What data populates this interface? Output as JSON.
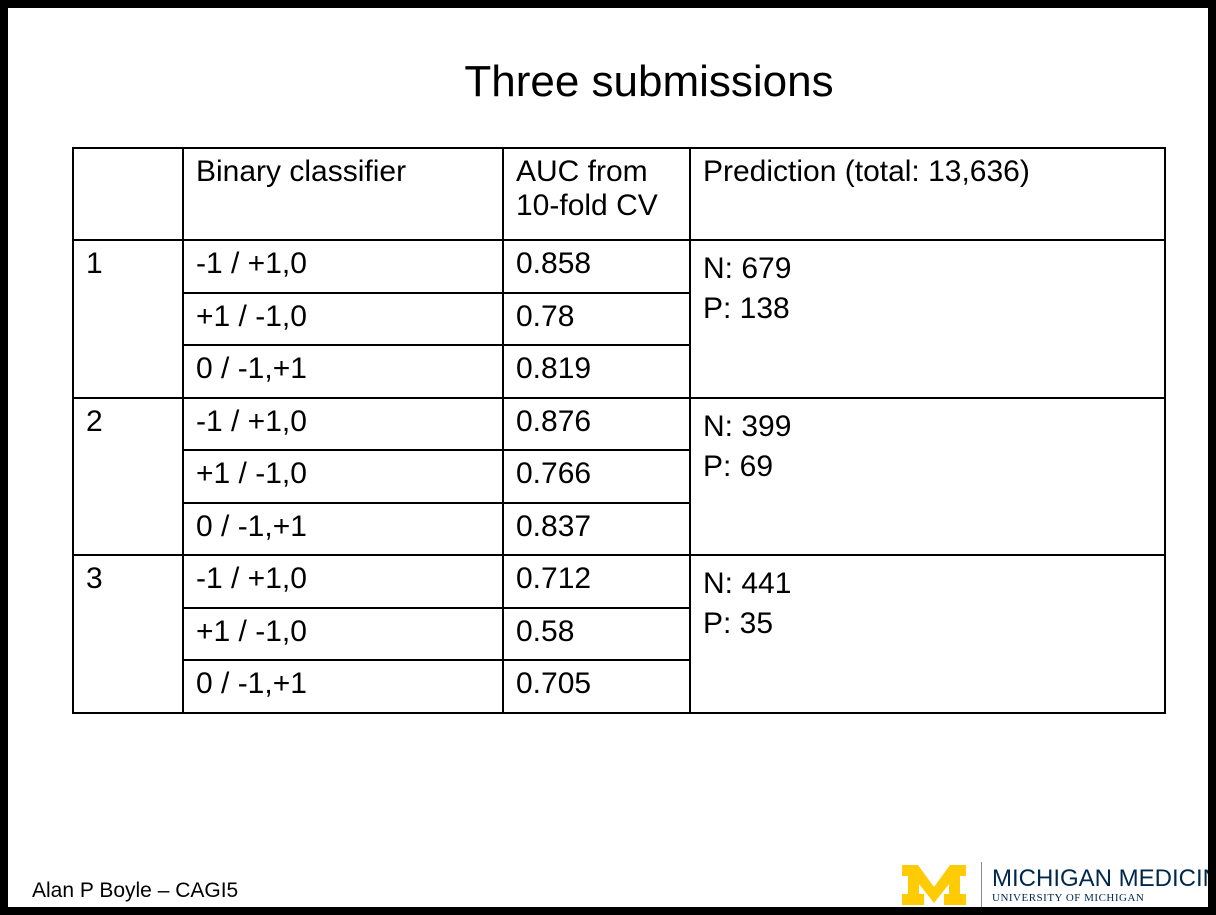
{
  "slide": {
    "title": "Three submissions"
  },
  "table": {
    "headers": [
      "",
      "Binary classifier",
      "AUC from 10-fold CV",
      "Prediction (total: 13,636)"
    ],
    "submissions": [
      {
        "id": "1",
        "rows": [
          {
            "classifier": "-1 / +1,0",
            "auc": "0.858"
          },
          {
            "classifier": "+1 / -1,0",
            "auc": "0.78"
          },
          {
            "classifier": "0 / -1,+1",
            "auc": "0.819"
          }
        ],
        "prediction": {
          "n": "N: 679",
          "p": "P: 138"
        }
      },
      {
        "id": "2",
        "rows": [
          {
            "classifier": "-1 / +1,0",
            "auc": "0.876"
          },
          {
            "classifier": "+1 / -1,0",
            "auc": "0.766"
          },
          {
            "classifier": "0 / -1,+1",
            "auc": "0.837"
          }
        ],
        "prediction": {
          "n": "N: 399",
          "p": "P: 69"
        }
      },
      {
        "id": "3",
        "rows": [
          {
            "classifier": "-1 / +1,0",
            "auc": "0.712"
          },
          {
            "classifier": "+1 / -1,0",
            "auc": "0.58"
          },
          {
            "classifier": "0 / -1,+1",
            "auc": "0.705"
          }
        ],
        "prediction": {
          "n": "N: 441",
          "p": "P: 35"
        }
      }
    ]
  },
  "footer": {
    "author": "Alan P Boyle – CAGI5",
    "logo": {
      "icon": "block-m-icon",
      "line1": "MICHIGAN MEDICINE",
      "line2": "UNIVERSITY OF MICHIGAN",
      "maize": "#ffcb05",
      "blue": "#00274c"
    }
  }
}
